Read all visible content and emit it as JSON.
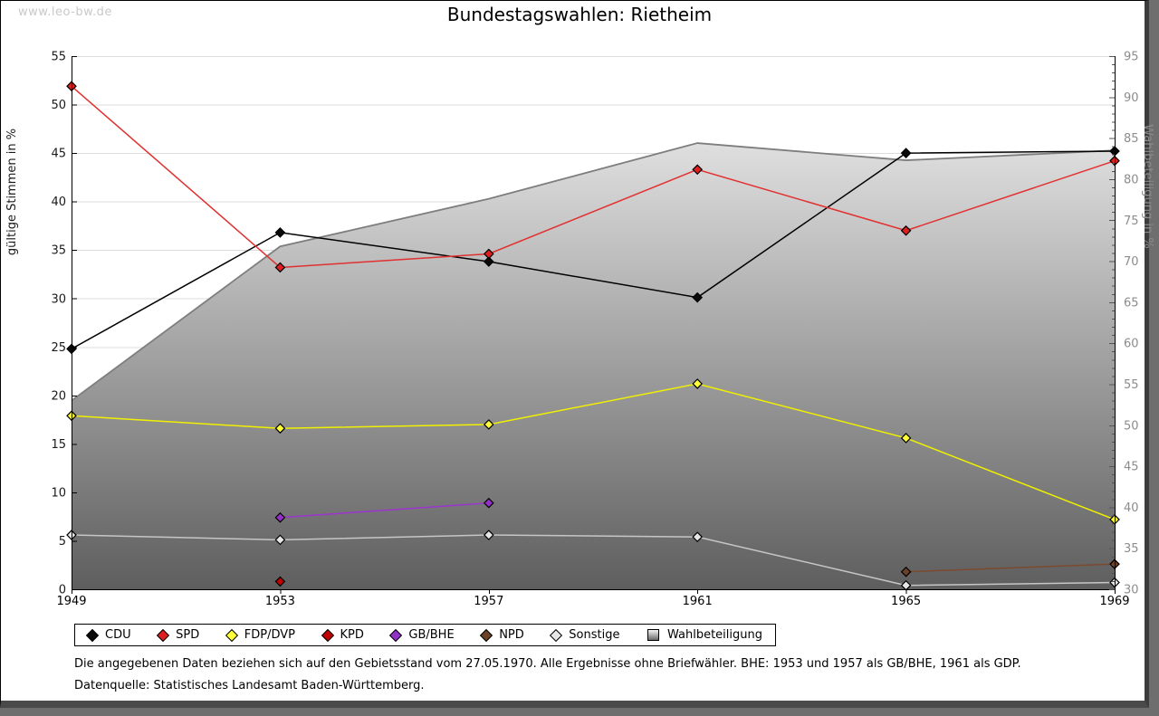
{
  "watermark": "www.leo-bw.de",
  "title": "Bundestagswahlen: Rietheim",
  "footnotes": {
    "line1": "Die angegebenen Daten beziehen sich auf den Gebietsstand vom 27.05.1970. Alle Ergebnisse ohne Briefwähler. BHE: 1953 und 1957 als GB/BHE, 1961 als GDP.",
    "line2": "Datenquelle: Statistisches Landesamt Baden-Württemberg."
  },
  "chart_data": {
    "type": "line",
    "title": "Bundestagswahlen: Rietheim",
    "x_categories": [
      "1949",
      "1953",
      "1957",
      "1961",
      "1965",
      "1969"
    ],
    "left_axis": {
      "label": "gültige Stimmen in %",
      "min": 0,
      "max": 55,
      "tick_step": 5,
      "color": "#1a1a1a"
    },
    "right_axis": {
      "label": "Wahlbeteiligung in %",
      "min": 30,
      "max": 95,
      "tick_step": 5,
      "minor_step": 1,
      "color": "#8c8c8c"
    },
    "grid": true,
    "gridline_color": "#dcdcdc",
    "legend_position": "bottom",
    "series": [
      {
        "name": "CDU",
        "type": "line",
        "axis": "left",
        "color": "#000000",
        "marker": "#0a0a0a",
        "values": [
          24.8,
          36.8,
          33.8,
          30.1,
          45.0,
          45.2
        ]
      },
      {
        "name": "SPD",
        "type": "line",
        "axis": "left",
        "color": "#e23030",
        "marker": "#dd1f1f",
        "values": [
          51.9,
          33.2,
          34.6,
          43.3,
          37.0,
          44.2
        ]
      },
      {
        "name": "FDP/DVP",
        "type": "line",
        "axis": "left",
        "color": "#f0f000",
        "marker": "#ffff38",
        "values": [
          17.9,
          16.6,
          17.0,
          21.2,
          15.6,
          7.2
        ]
      },
      {
        "name": "KPD",
        "type": "line",
        "axis": "left",
        "color": "#c00000",
        "marker": "#c00000",
        "values": [
          null,
          0.8,
          null,
          null,
          null,
          null
        ]
      },
      {
        "name": "GB/BHE",
        "type": "line",
        "axis": "left",
        "color": "#9c35cf",
        "marker": "#9330c6",
        "values": [
          null,
          7.4,
          8.9,
          null,
          null,
          null
        ]
      },
      {
        "name": "NPD",
        "type": "line",
        "axis": "left",
        "color": "#7b4a2f",
        "marker": "#6b4226",
        "values": [
          null,
          null,
          null,
          null,
          1.8,
          2.6
        ]
      },
      {
        "name": "Sonstige",
        "type": "line",
        "axis": "left",
        "color": "#c6c6c6",
        "marker": "#e6e6e6",
        "values": [
          5.6,
          5.1,
          5.6,
          5.4,
          0.4,
          0.7
        ]
      },
      {
        "name": "Wahlbeteiligung",
        "type": "area",
        "axis": "right",
        "color": "#7e7e7e",
        "fill_top": "#f8f8f8",
        "fill_bottom": "#5e5e5e",
        "values": [
          53.0,
          71.8,
          77.6,
          84.4,
          82.3,
          83.5
        ]
      }
    ]
  }
}
